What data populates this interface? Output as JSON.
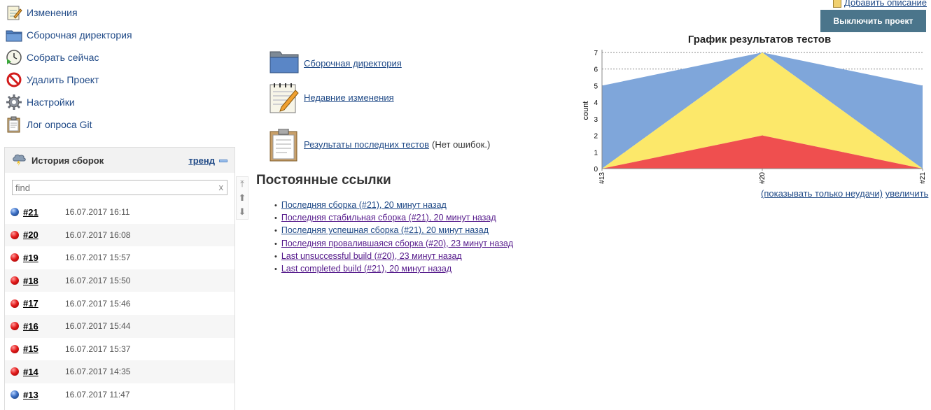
{
  "tasks": [
    {
      "label": "Изменения",
      "icon": "notepad-icon"
    },
    {
      "label": "Сборочная директория",
      "icon": "folder-icon"
    },
    {
      "label": "Собрать сейчас",
      "icon": "clock-play-icon"
    },
    {
      "label": "Удалить Проект",
      "icon": "no-entry-icon"
    },
    {
      "label": "Настройки",
      "icon": "gear-icon"
    },
    {
      "label": "Лог опроса Git",
      "icon": "clipboard-icon"
    }
  ],
  "history": {
    "title": "История сборок",
    "trend_label": "тренд",
    "search_placeholder": "find",
    "clear_glyph": "x",
    "builds": [
      {
        "num": "#21",
        "date": "16.07.2017 16:11",
        "status": "blue"
      },
      {
        "num": "#20",
        "date": "16.07.2017 16:08",
        "status": "red"
      },
      {
        "num": "#19",
        "date": "16.07.2017 15:57",
        "status": "red"
      },
      {
        "num": "#18",
        "date": "16.07.2017 15:50",
        "status": "red"
      },
      {
        "num": "#17",
        "date": "16.07.2017 15:46",
        "status": "red"
      },
      {
        "num": "#16",
        "date": "16.07.2017 15:44",
        "status": "red"
      },
      {
        "num": "#15",
        "date": "16.07.2017 15:37",
        "status": "red"
      },
      {
        "num": "#14",
        "date": "16.07.2017 14:35",
        "status": "red"
      },
      {
        "num": "#13",
        "date": "16.07.2017 11:47",
        "status": "blue"
      }
    ]
  },
  "main_links": {
    "workspace": "Сборочная директория",
    "changes": "Недавние изменения",
    "test_results": "Результаты последних тестов",
    "test_note": "(Нет ошибок.)"
  },
  "permalinks": {
    "title": "Постоянные ссылки",
    "items": [
      {
        "label": "Последняя сборка (#21), 20 минут назад",
        "visited": false
      },
      {
        "label": "Последняя стабильная сборка (#21), 20 минут назад",
        "visited": true
      },
      {
        "label": "Последняя успешная сборка (#21), 20 минут назад",
        "visited": false
      },
      {
        "label": "Последняя провалившаяся сборка (#20), 23 минут назад",
        "visited": true
      },
      {
        "label": "Last unsuccessful build (#20), 23 минут назад",
        "visited": true
      },
      {
        "label": "Last completed build (#21), 20 минут назад",
        "visited": true
      }
    ]
  },
  "header": {
    "add_description": "Добавить описание",
    "disable_button": "Выключить проект"
  },
  "chart_links": {
    "only_failures": "(показывать только неудачи)",
    "enlarge": "увеличить"
  },
  "chart_data": {
    "type": "area",
    "title": "График результатов тестов",
    "xlabel": "",
    "ylabel": "count",
    "x": [
      "#13",
      "#20",
      "#21"
    ],
    "ylim": [
      0,
      7
    ],
    "yticks": [
      0,
      1,
      2,
      3,
      4,
      5,
      6,
      7
    ],
    "grid": true,
    "stacked": true,
    "series": [
      {
        "color": "#ef4f4f",
        "values": [
          0,
          2,
          0
        ]
      },
      {
        "color": "#fce86a",
        "values": [
          0,
          5,
          0
        ]
      },
      {
        "color": "#7fa6da",
        "values": [
          5,
          0,
          5
        ]
      }
    ]
  }
}
